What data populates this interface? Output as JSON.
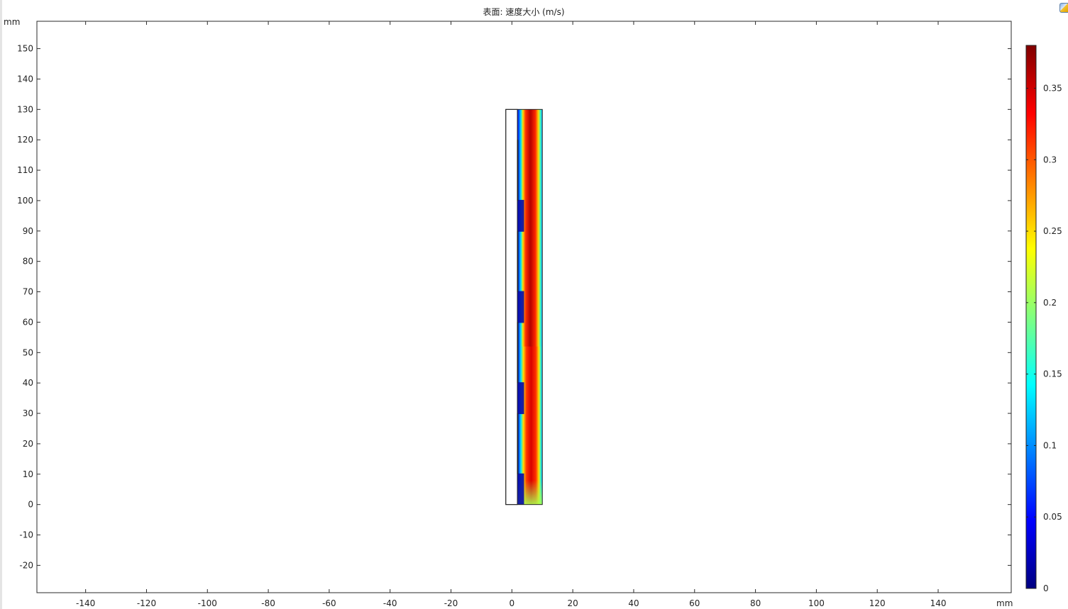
{
  "plot": {
    "title": "表面: 速度大小 (m/s)",
    "x_unit": "mm",
    "y_unit": "mm"
  },
  "chart_data": {
    "type": "heatmap",
    "title": "表面: 速度大小 (m/s)",
    "xlabel": "mm",
    "ylabel": "mm",
    "xlim": [
      -156,
      164
    ],
    "ylim": [
      -29,
      159
    ],
    "x_ticks": [
      -140,
      -120,
      -100,
      -80,
      -60,
      -40,
      -20,
      0,
      20,
      40,
      60,
      80,
      100,
      120,
      140
    ],
    "y_ticks": [
      -20,
      -10,
      0,
      10,
      20,
      30,
      40,
      50,
      60,
      70,
      80,
      90,
      100,
      110,
      120,
      130,
      140,
      150
    ],
    "grid": false,
    "domain": {
      "x": [
        -2,
        10
      ],
      "y": [
        0,
        130
      ],
      "wall_x": [
        0,
        1.8
      ],
      "baffles": [
        [
          10,
          30
        ],
        [
          40,
          60
        ],
        [
          70,
          90
        ],
        [
          100,
          120
        ]
      ]
    },
    "field": "速度大小",
    "units": "m/s",
    "max_value": 0.38,
    "colorbar": {
      "range": [
        0,
        0.38
      ],
      "ticks": [
        0,
        0.05,
        0.1,
        0.15,
        0.2,
        0.25,
        0.3,
        0.35
      ],
      "colormap": [
        "#000080",
        "#0000ff",
        "#0080ff",
        "#00ffff",
        "#80ff80",
        "#ffff00",
        "#ff8000",
        "#ff0000",
        "#800000"
      ]
    }
  }
}
